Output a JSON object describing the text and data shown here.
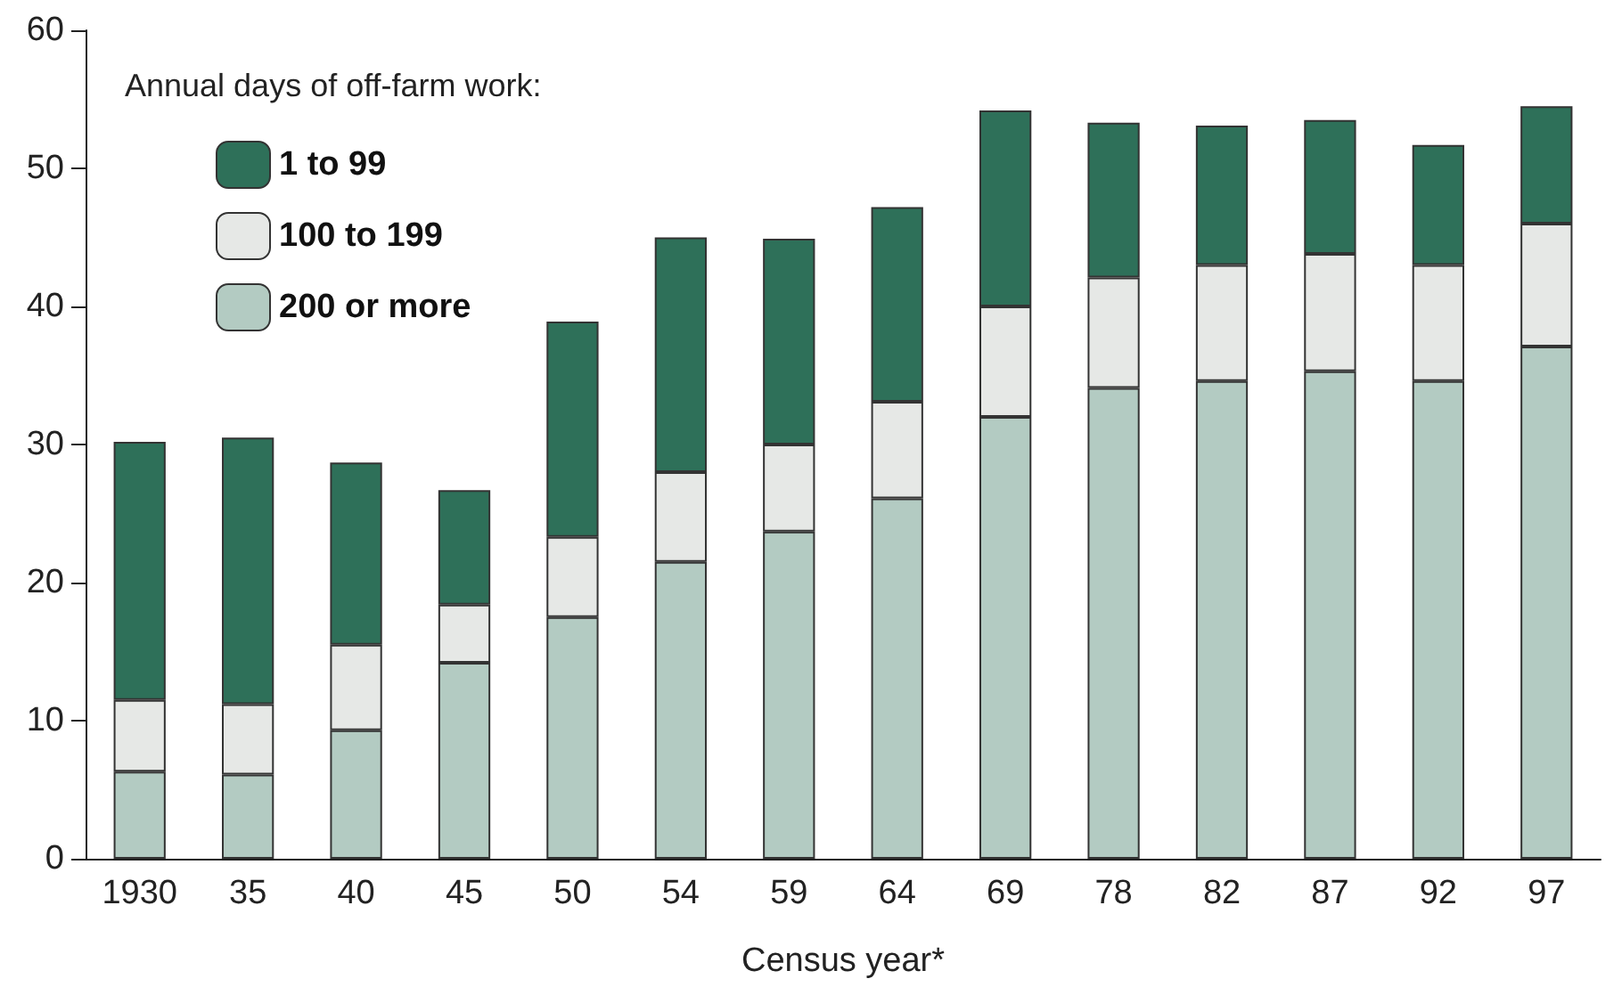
{
  "chart_data": {
    "type": "bar",
    "stacked": true,
    "xlabel": "Census year*",
    "legend_title": "Annual days of off-farm work:",
    "legend": "top left",
    "grid": false,
    "categories": [
      "1930",
      "35",
      "40",
      "45",
      "50",
      "54",
      "59",
      "64",
      "69",
      "78",
      "82",
      "87",
      "92",
      "97"
    ],
    "ylim": [
      0,
      60
    ],
    "yticks": [
      0,
      10,
      20,
      30,
      40,
      50,
      60
    ],
    "series": [
      {
        "name": "200 or more",
        "color": "#b3cbc2",
        "values": [
          6.3,
          6.1,
          9.3,
          14.2,
          17.5,
          21.5,
          23.7,
          26.1,
          32,
          34.1,
          34.6,
          35.3,
          34.6,
          37.1
        ]
      },
      {
        "name": "100 to 199",
        "color": "#e6e8e6",
        "values": [
          5.2,
          5.1,
          6.2,
          4.2,
          5.8,
          6.5,
          6.3,
          7,
          8,
          8,
          8.4,
          8.5,
          8.4,
          8.9
        ]
      },
      {
        "name": "1 to 99",
        "color": "#2e7059",
        "values": [
          18.7,
          19.3,
          13.2,
          8.3,
          15.6,
          17,
          14.9,
          14.1,
          14.2,
          11.2,
          10.1,
          9.7,
          8.7,
          8.5
        ]
      }
    ]
  }
}
